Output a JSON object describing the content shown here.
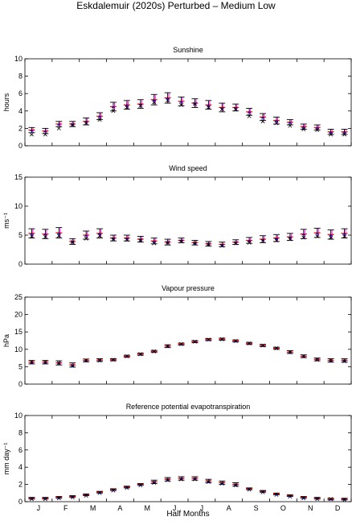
{
  "title": "Eskdalemuir (2020s) Perturbed – Medium Low",
  "xlabel": "Half Months",
  "month_labels": [
    "J",
    "F",
    "M",
    "A",
    "M",
    "J",
    "J",
    "A",
    "S",
    "O",
    "N",
    "D"
  ],
  "colors": {
    "observed_bar": "#000000",
    "perturbed_mean": "#ff0000",
    "perturbed_range": "#ff00ff",
    "observed_mean": "#0000ff",
    "cross_marker": "#000000"
  },
  "chart_data": [
    {
      "type": "errorbar",
      "title": "Sunshine",
      "ylabel": "hours",
      "ylim": [
        0,
        10
      ],
      "yticks": [
        0,
        2,
        4,
        6,
        8,
        10
      ],
      "x": [
        1,
        2,
        3,
        4,
        5,
        6,
        7,
        8,
        9,
        10,
        11,
        12,
        13,
        14,
        15,
        16,
        17,
        18,
        19,
        20,
        21,
        22,
        23,
        24
      ],
      "mean": [
        1.8,
        1.7,
        2.5,
        2.5,
        2.8,
        3.4,
        4.5,
        4.7,
        4.8,
        5.3,
        5.5,
        5.1,
        4.9,
        4.7,
        4.4,
        4.4,
        3.9,
        3.3,
        2.9,
        2.7,
        2.2,
        2.1,
        1.6,
        1.6
      ],
      "err": [
        0.3,
        0.3,
        0.3,
        0.3,
        0.4,
        0.4,
        0.5,
        0.5,
        0.5,
        0.6,
        0.6,
        0.5,
        0.5,
        0.5,
        0.5,
        0.4,
        0.4,
        0.4,
        0.4,
        0.3,
        0.3,
        0.3,
        0.3,
        0.3
      ],
      "cross": [
        1.3,
        1.3,
        2.0,
        2.4,
        2.6,
        3.0,
        4.0,
        4.4,
        4.6,
        5.0,
        5.2,
        4.7,
        4.8,
        4.4,
        4.2,
        4.2,
        3.4,
        2.8,
        2.6,
        2.3,
        1.9,
        1.8,
        1.3,
        1.3
      ]
    },
    {
      "type": "errorbar",
      "title": "Wind speed",
      "ylabel": "ms⁻¹",
      "ylim": [
        0,
        15
      ],
      "yticks": [
        0,
        5,
        10,
        15
      ],
      "x": [
        1,
        2,
        3,
        4,
        5,
        6,
        7,
        8,
        9,
        10,
        11,
        12,
        13,
        14,
        15,
        16,
        17,
        18,
        19,
        20,
        21,
        22,
        23,
        24
      ],
      "mean": [
        5.3,
        5.2,
        5.4,
        3.9,
        5.0,
        5.3,
        4.5,
        4.5,
        4.3,
        4.0,
        3.8,
        4.1,
        3.7,
        3.5,
        3.4,
        3.8,
        4.1,
        4.3,
        4.5,
        4.7,
        5.2,
        5.4,
        5.1,
        5.3
      ],
      "err": [
        0.8,
        0.8,
        0.9,
        0.5,
        0.7,
        0.8,
        0.5,
        0.5,
        0.5,
        0.5,
        0.5,
        0.4,
        0.4,
        0.4,
        0.4,
        0.4,
        0.5,
        0.6,
        0.6,
        0.6,
        0.8,
        0.8,
        0.8,
        0.8
      ],
      "cross": [
        4.8,
        4.7,
        4.9,
        3.8,
        4.4,
        4.9,
        4.3,
        4.2,
        4.1,
        3.6,
        3.7,
        3.9,
        3.6,
        3.4,
        3.2,
        3.6,
        3.7,
        4.0,
        4.1,
        4.3,
        4.6,
        4.8,
        4.6,
        4.8
      ]
    },
    {
      "type": "errorbar",
      "title": "Vapour pressure",
      "ylabel": "hPa",
      "ylim": [
        0,
        25
      ],
      "yticks": [
        0,
        5,
        10,
        15,
        20,
        25
      ],
      "x": [
        1,
        2,
        3,
        4,
        5,
        6,
        7,
        8,
        9,
        10,
        11,
        12,
        13,
        14,
        15,
        16,
        17,
        18,
        19,
        20,
        21,
        22,
        23,
        24
      ],
      "mean": [
        6.3,
        6.3,
        6.1,
        5.5,
        6.8,
        6.9,
        7.0,
        8.0,
        8.6,
        9.4,
        10.9,
        11.5,
        12.2,
        12.8,
        12.9,
        12.4,
        11.7,
        11.1,
        10.3,
        9.2,
        8.0,
        7.1,
        6.8,
        6.8
      ],
      "err": [
        0.5,
        0.5,
        0.6,
        0.6,
        0.4,
        0.4,
        0.3,
        0.3,
        0.3,
        0.3,
        0.4,
        0.3,
        0.3,
        0.3,
        0.3,
        0.3,
        0.3,
        0.3,
        0.3,
        0.4,
        0.4,
        0.4,
        0.5,
        0.5
      ],
      "cross": [
        6.3,
        6.3,
        6.0,
        5.3,
        6.8,
        6.8,
        7.0,
        8.0,
        8.6,
        9.4,
        10.9,
        11.5,
        12.2,
        12.8,
        12.9,
        12.4,
        11.7,
        11.1,
        10.3,
        9.2,
        8.0,
        7.0,
        6.8,
        6.6
      ]
    },
    {
      "type": "errorbar",
      "title": "Reference potential evapotranspiration",
      "ylabel": "mm day⁻¹",
      "ylim": [
        0,
        10
      ],
      "yticks": [
        0,
        2,
        4,
        6,
        8,
        10
      ],
      "x": [
        1,
        2,
        3,
        4,
        5,
        6,
        7,
        8,
        9,
        10,
        11,
        12,
        13,
        14,
        15,
        16,
        17,
        18,
        19,
        20,
        21,
        22,
        23,
        24
      ],
      "mean": [
        0.4,
        0.4,
        0.5,
        0.6,
        0.8,
        1.1,
        1.4,
        1.7,
        2.0,
        2.3,
        2.6,
        2.7,
        2.7,
        2.4,
        2.2,
        2.0,
        1.5,
        1.2,
        0.9,
        0.7,
        0.5,
        0.4,
        0.3,
        0.3
      ],
      "err": [
        0.1,
        0.1,
        0.1,
        0.1,
        0.1,
        0.1,
        0.1,
        0.1,
        0.1,
        0.2,
        0.2,
        0.2,
        0.2,
        0.2,
        0.2,
        0.2,
        0.1,
        0.1,
        0.1,
        0.1,
        0.1,
        0.1,
        0.1,
        0.1
      ],
      "cross": [
        0.3,
        0.3,
        0.4,
        0.5,
        0.7,
        1.0,
        1.3,
        1.6,
        1.9,
        2.2,
        2.5,
        2.6,
        2.6,
        2.3,
        2.1,
        1.9,
        1.4,
        1.1,
        0.8,
        0.6,
        0.4,
        0.3,
        0.3,
        0.2
      ]
    }
  ]
}
